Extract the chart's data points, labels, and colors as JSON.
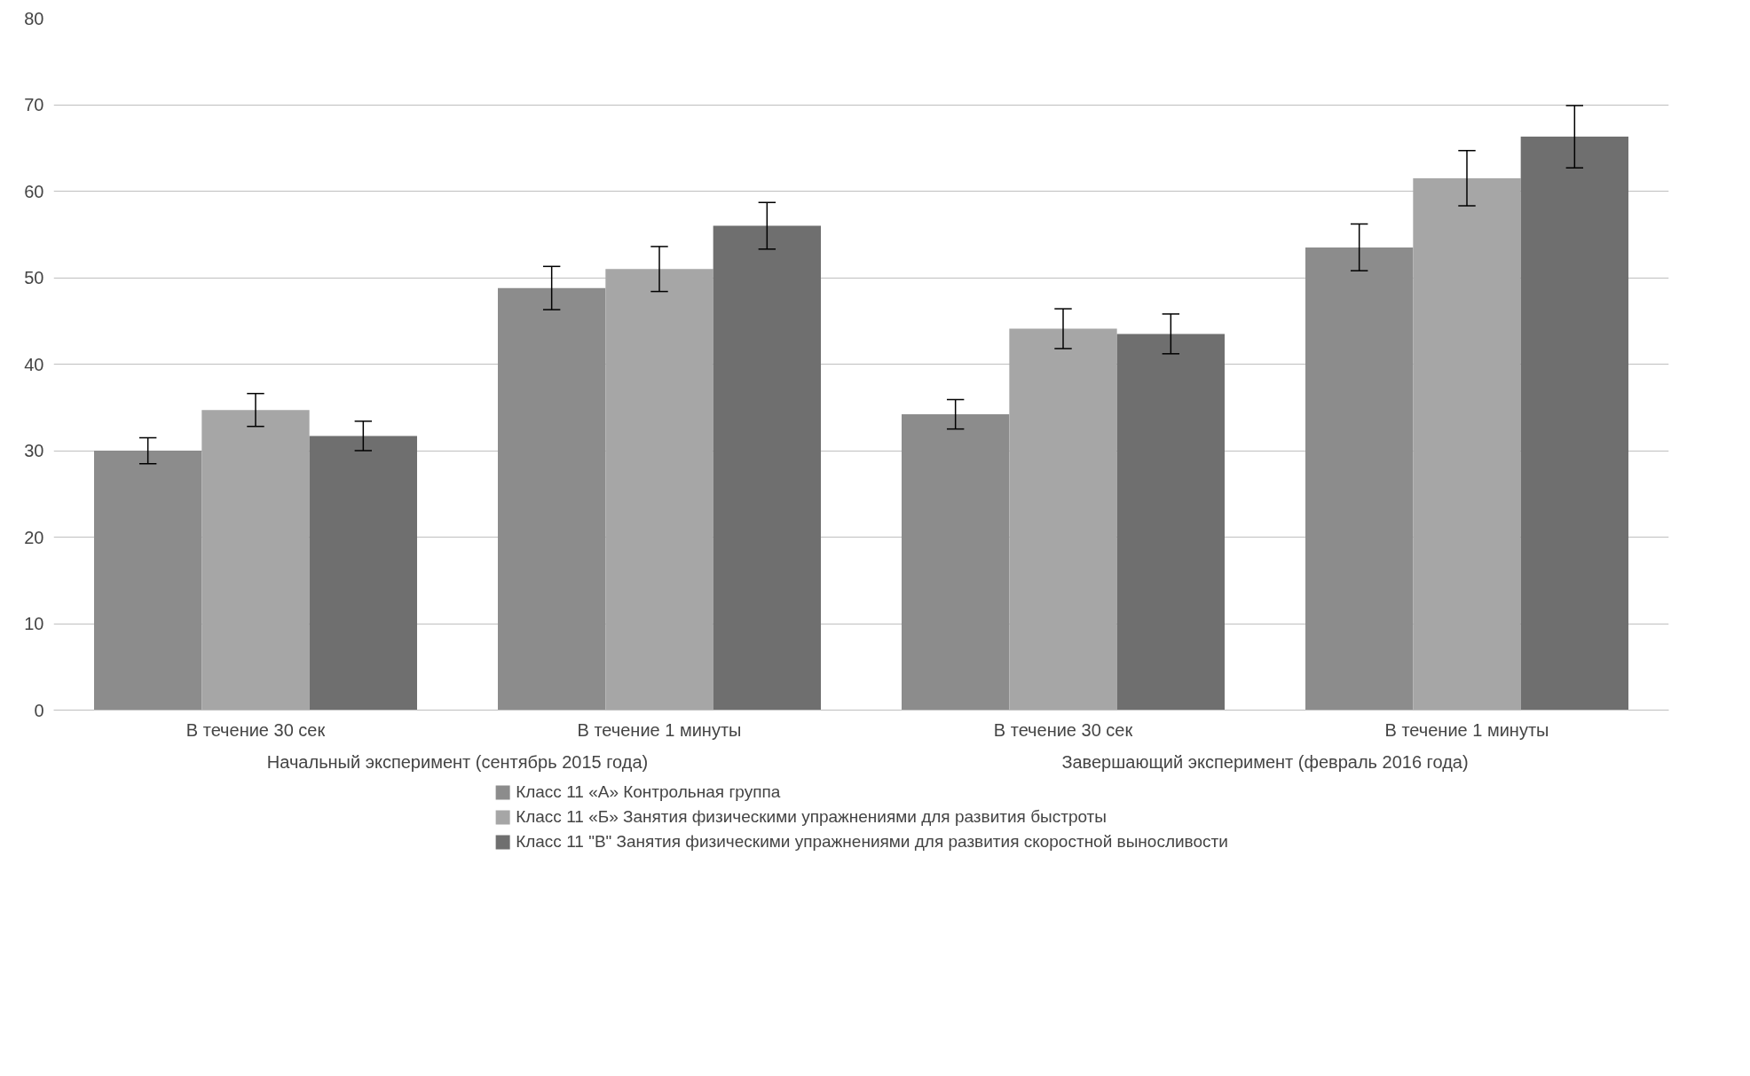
{
  "chart_data": {
    "type": "bar",
    "categories": [
      "В течение 30 сек",
      "В течение 1 минуты",
      "В течение 30 сек",
      "В течение 1 минуты"
    ],
    "annotations": [
      "Начальный эксперимент (сентябрь 2015 года)",
      "Завершающий эксперимент (февраль 2016 года)"
    ],
    "series": [
      {
        "name": "Класс 11 «А» Контрольная группа",
        "color": "#8c8c8c",
        "values": [
          30.0,
          48.8,
          34.2,
          53.5
        ],
        "errors": [
          1.5,
          2.5,
          1.7,
          2.7
        ]
      },
      {
        "name": "Класс 11 «Б» Занятия физическими упражнениями для развития быстроты",
        "color": "#a6a6a6",
        "values": [
          34.7,
          51.0,
          44.1,
          61.5
        ],
        "errors": [
          1.9,
          2.6,
          2.3,
          3.2
        ]
      },
      {
        "name": "Класс 11 \"В\" Занятия физическими упражнениями для развития скоростной выносливости",
        "color": "#6f6f6f",
        "values": [
          31.7,
          56.0,
          43.5,
          66.3
        ],
        "errors": [
          1.7,
          2.7,
          2.3,
          3.6
        ]
      }
    ],
    "ylim": [
      0,
      80
    ],
    "yticks": [
      0,
      10,
      20,
      30,
      40,
      50,
      60,
      70,
      80
    ],
    "grid": "y",
    "legend": "bottom"
  }
}
